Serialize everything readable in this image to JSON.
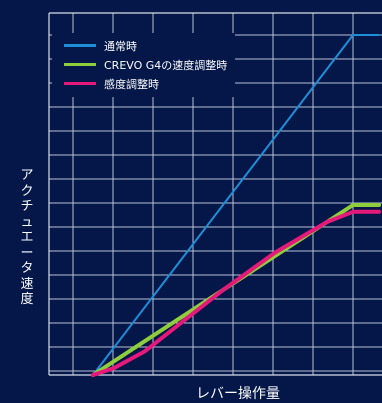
{
  "chart_data": {
    "type": "line",
    "title": "",
    "xlabel": "レバー操作量",
    "ylabel": "アクチュエータ速度",
    "xlim": [
      0,
      100
    ],
    "ylim": [
      0,
      100
    ],
    "grid": true,
    "legend_placement": "top-left",
    "series": [
      {
        "name": "通常時",
        "color": "#1f8ed8",
        "points": [
          [
            0,
            0
          ],
          [
            100,
            100
          ],
          [
            110,
            100
          ]
        ]
      },
      {
        "name": "CREVO G4の速度調整時",
        "color": "#8fcd3c",
        "points": [
          [
            0,
            0
          ],
          [
            100,
            50
          ],
          [
            110,
            50
          ]
        ]
      },
      {
        "name": "感度調整時",
        "color": "#e5197a",
        "points": [
          [
            0,
            0
          ],
          [
            8,
            2
          ],
          [
            20,
            7
          ],
          [
            35,
            16
          ],
          [
            50,
            25
          ],
          [
            70,
            36
          ],
          [
            90,
            45
          ],
          [
            100,
            48
          ],
          [
            110,
            48
          ]
        ]
      }
    ]
  }
}
